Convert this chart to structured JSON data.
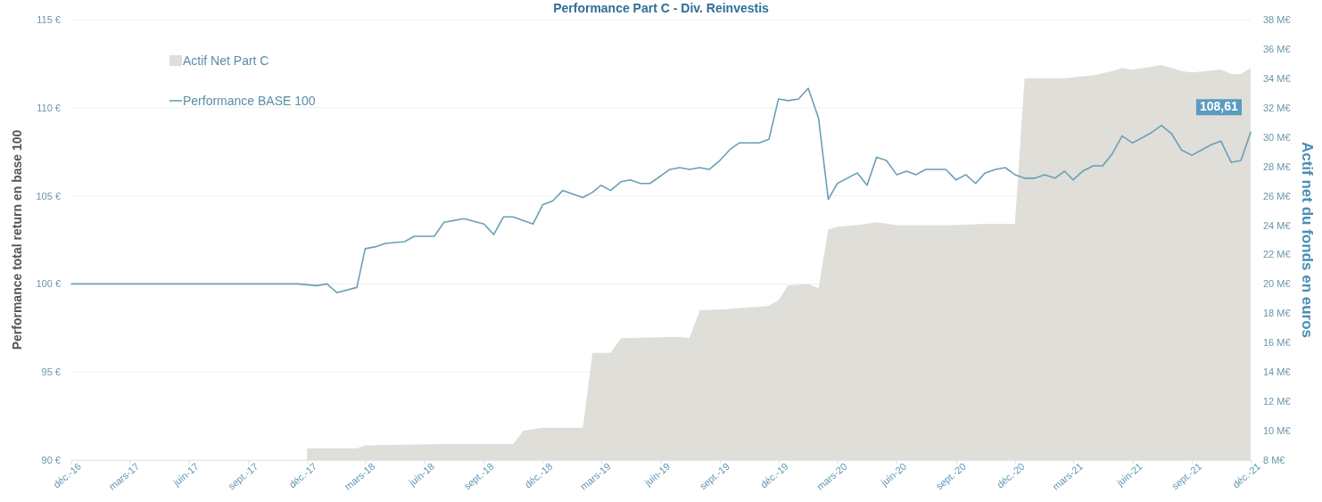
{
  "chart_data": {
    "type": "line",
    "title": "Performance Part C - Div. Reinvestis",
    "ylabel": "Performance total return en base 100",
    "y2label": "Actif net du fonds en euros",
    "xlim": [
      "2016-12-01",
      "2021-12-01"
    ],
    "xticks": [
      {
        "value": "2016-12-01",
        "label": "déc.-16"
      },
      {
        "value": "2017-03-01",
        "label": "mars-17"
      },
      {
        "value": "2017-06-01",
        "label": "juin-17"
      },
      {
        "value": "2017-09-01",
        "label": "sept.-17"
      },
      {
        "value": "2017-12-01",
        "label": "déc.-17"
      },
      {
        "value": "2018-03-01",
        "label": "mars-18"
      },
      {
        "value": "2018-06-01",
        "label": "juin-18"
      },
      {
        "value": "2018-09-01",
        "label": "sept.-18"
      },
      {
        "value": "2018-12-01",
        "label": "déc.-18"
      },
      {
        "value": "2019-03-01",
        "label": "mars-19"
      },
      {
        "value": "2019-06-01",
        "label": "juin-19"
      },
      {
        "value": "2019-09-01",
        "label": "sept.-19"
      },
      {
        "value": "2019-12-01",
        "label": "déc.-19"
      },
      {
        "value": "2020-03-01",
        "label": "mars-20"
      },
      {
        "value": "2020-06-01",
        "label": "juin-20"
      },
      {
        "value": "2020-09-01",
        "label": "sept.-20"
      },
      {
        "value": "2020-12-01",
        "label": "déc.-20"
      },
      {
        "value": "2021-03-01",
        "label": "mars-21"
      },
      {
        "value": "2021-06-01",
        "label": "juin-21"
      },
      {
        "value": "2021-09-01",
        "label": "sept.-21"
      },
      {
        "value": "2021-12-01",
        "label": "déc.-21"
      }
    ],
    "ylim": [
      90,
      115
    ],
    "yticks": [
      {
        "value": 90,
        "label": "90 €"
      },
      {
        "value": 95,
        "label": "95 €"
      },
      {
        "value": 100,
        "label": "100 €"
      },
      {
        "value": 105,
        "label": "105 €"
      },
      {
        "value": 110,
        "label": "110 €"
      },
      {
        "value": 115,
        "label": "115 €"
      }
    ],
    "y2lim": [
      8,
      38
    ],
    "y2ticks": [
      {
        "value": 8,
        "label": "8 M€"
      },
      {
        "value": 10,
        "label": "10 M€"
      },
      {
        "value": 12,
        "label": "12 M€"
      },
      {
        "value": 14,
        "label": "14 M€"
      },
      {
        "value": 16,
        "label": "16 M€"
      },
      {
        "value": 18,
        "label": "18 M€"
      },
      {
        "value": 20,
        "label": "20 M€"
      },
      {
        "value": 22,
        "label": "22 M€"
      },
      {
        "value": 24,
        "label": "24 M€"
      },
      {
        "value": 26,
        "label": "26 M€"
      },
      {
        "value": 28,
        "label": "28 M€"
      },
      {
        "value": 30,
        "label": "30 M€"
      },
      {
        "value": 32,
        "label": "32 M€"
      },
      {
        "value": 34,
        "label": "34 M€"
      },
      {
        "value": 36,
        "label": "36 M€"
      },
      {
        "value": 38,
        "label": "38 M€"
      }
    ],
    "grid": "y",
    "legend": "top left",
    "series": [
      {
        "name": "Actif Net Part C",
        "type": "area",
        "axis": "y2",
        "color": "#e0ded8",
        "x": [
          "2017-12-01",
          "2018-02-16",
          "2018-03-01",
          "2018-07-01",
          "2018-10-16",
          "2018-11-01",
          "2018-12-01",
          "2019-02-01",
          "2019-02-16",
          "2019-03-16",
          "2019-04-01",
          "2019-07-01",
          "2019-07-16",
          "2019-08-01",
          "2019-09-16",
          "2019-11-16",
          "2019-12-01",
          "2019-12-16",
          "2020-01-16",
          "2020-02-01",
          "2020-02-16",
          "2020-03-01",
          "2020-04-01",
          "2020-05-01",
          "2020-06-01",
          "2020-09-01",
          "2020-10-16",
          "2020-12-01",
          "2020-12-16",
          "2021-02-16",
          "2021-04-01",
          "2021-05-01",
          "2021-05-16",
          "2021-06-01",
          "2021-07-16",
          "2021-08-01",
          "2021-08-16",
          "2021-09-01",
          "2021-10-16",
          "2021-11-01",
          "2021-11-16",
          "2021-12-01"
        ],
        "values": [
          8.8,
          8.8,
          9.0,
          9.1,
          9.1,
          10.0,
          10.2,
          10.2,
          15.3,
          15.3,
          16.3,
          16.4,
          16.3,
          18.2,
          18.3,
          18.5,
          18.9,
          19.9,
          20.0,
          19.7,
          23.7,
          23.9,
          24.0,
          24.2,
          24.0,
          24.0,
          24.1,
          24.1,
          34.0,
          34.0,
          34.2,
          34.5,
          34.7,
          34.6,
          34.9,
          34.7,
          34.5,
          34.4,
          34.6,
          34.3,
          34.3,
          34.7
        ]
      },
      {
        "name": "Performance BASE 100",
        "color": "#6a9fb8",
        "x": [
          "2016-12-01",
          "2017-06-01",
          "2017-11-16",
          "2017-12-16",
          "2018-01-01",
          "2018-01-16",
          "2018-02-16",
          "2018-03-01",
          "2018-03-16",
          "2018-04-01",
          "2018-05-01",
          "2018-05-16",
          "2018-06-16",
          "2018-07-01",
          "2018-08-01",
          "2018-09-01",
          "2018-09-16",
          "2018-10-01",
          "2018-10-16",
          "2018-11-16",
          "2018-12-01",
          "2018-12-16",
          "2019-01-01",
          "2019-02-01",
          "2019-02-16",
          "2019-03-01",
          "2019-03-16",
          "2019-04-01",
          "2019-04-16",
          "2019-05-01",
          "2019-05-16",
          "2019-06-16",
          "2019-07-01",
          "2019-07-16",
          "2019-08-01",
          "2019-08-16",
          "2019-09-01",
          "2019-09-16",
          "2019-10-01",
          "2019-11-01",
          "2019-11-16",
          "2019-12-01",
          "2019-12-16",
          "2020-01-01",
          "2020-01-16",
          "2020-02-01",
          "2020-02-16",
          "2020-03-01",
          "2020-04-01",
          "2020-04-16",
          "2020-05-01",
          "2020-05-16",
          "2020-06-01",
          "2020-06-16",
          "2020-07-01",
          "2020-07-16",
          "2020-08-16",
          "2020-09-01",
          "2020-09-16",
          "2020-10-01",
          "2020-10-16",
          "2020-11-01",
          "2020-11-16",
          "2020-12-01",
          "2020-12-16",
          "2021-01-01",
          "2021-01-16",
          "2021-02-01",
          "2021-02-16",
          "2021-03-01",
          "2021-03-16",
          "2021-04-01",
          "2021-04-16",
          "2021-05-01",
          "2021-05-16",
          "2021-06-01",
          "2021-07-01",
          "2021-07-16",
          "2021-08-01",
          "2021-08-16",
          "2021-09-01",
          "2021-09-16",
          "2021-10-01",
          "2021-10-16",
          "2021-11-01",
          "2021-11-16",
          "2021-12-01"
        ],
        "values": [
          100,
          100,
          100,
          99.9,
          100.0,
          99.5,
          99.8,
          102.0,
          102.1,
          102.3,
          102.4,
          102.7,
          102.7,
          103.5,
          103.7,
          103.4,
          102.8,
          103.8,
          103.8,
          103.4,
          104.5,
          104.7,
          105.3,
          104.9,
          105.2,
          105.6,
          105.3,
          105.8,
          105.9,
          105.7,
          105.7,
          106.5,
          106.6,
          106.5,
          106.6,
          106.5,
          107.0,
          107.6,
          108.0,
          108.0,
          108.2,
          110.5,
          110.4,
          110.5,
          111.1,
          109.4,
          104.8,
          105.7,
          106.3,
          105.6,
          107.2,
          107.0,
          106.2,
          106.4,
          106.2,
          106.5,
          106.5,
          105.9,
          106.2,
          105.7,
          106.3,
          106.5,
          106.6,
          106.2,
          106.0,
          106.0,
          106.2,
          106.0,
          106.4,
          105.9,
          106.4,
          106.7,
          106.7,
          107.4,
          108.4,
          108.0,
          108.6,
          109.0,
          108.5,
          107.6,
          107.3,
          107.6,
          107.9,
          108.1,
          106.9,
          107.0,
          108.61
        ]
      }
    ],
    "annotations": [
      {
        "text": "108,61",
        "x": "2021-12-01",
        "y": 108.61
      }
    ]
  }
}
